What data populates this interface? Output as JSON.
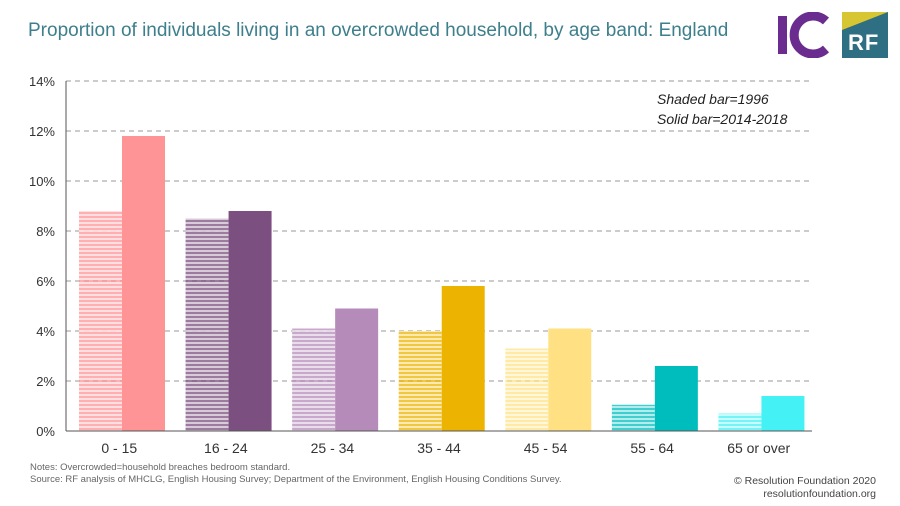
{
  "header": {
    "title": "Proportion of individuals living in an overcrowded household, by age band: England"
  },
  "logos": {
    "ic_logo": "IC",
    "rf_logo": "RF"
  },
  "legend": {
    "shaded": "Shaded bar=1996",
    "solid": "Solid bar=2014-2018"
  },
  "chart_data": {
    "type": "bar",
    "categories": [
      "0 - 15",
      "16 - 24",
      "25 - 34",
      "35 - 44",
      "45 - 54",
      "55 - 64",
      "65 or over"
    ],
    "series": [
      {
        "name": "1996",
        "values": [
          8.8,
          8.5,
          4.1,
          4.0,
          3.3,
          1.05,
          0.7
        ]
      },
      {
        "name": "2014-2018",
        "values": [
          11.8,
          8.8,
          4.9,
          5.8,
          4.1,
          2.6,
          1.4
        ]
      }
    ],
    "ytick_labels": [
      "0%",
      "2%",
      "4%",
      "6%",
      "8%",
      "10%",
      "12%",
      "14%"
    ],
    "ylim": [
      0,
      14
    ],
    "grid": true,
    "legend_position": "top-right",
    "colors": [
      "#ff9496",
      "#7b4f7f",
      "#b58cb9",
      "#ecb400",
      "#ffe184",
      "#00bdbd",
      "#44f1f5"
    ]
  },
  "footer": {
    "notes": "Notes: Overcrowded=household breaches bedroom standard.",
    "source": "Source: RF analysis of MHCLG, English Housing Survey; Department of the Environment, English Housing Conditions Survey.",
    "copyright": "© Resolution Foundation 2020",
    "website": "resolutionfoundation.org"
  }
}
